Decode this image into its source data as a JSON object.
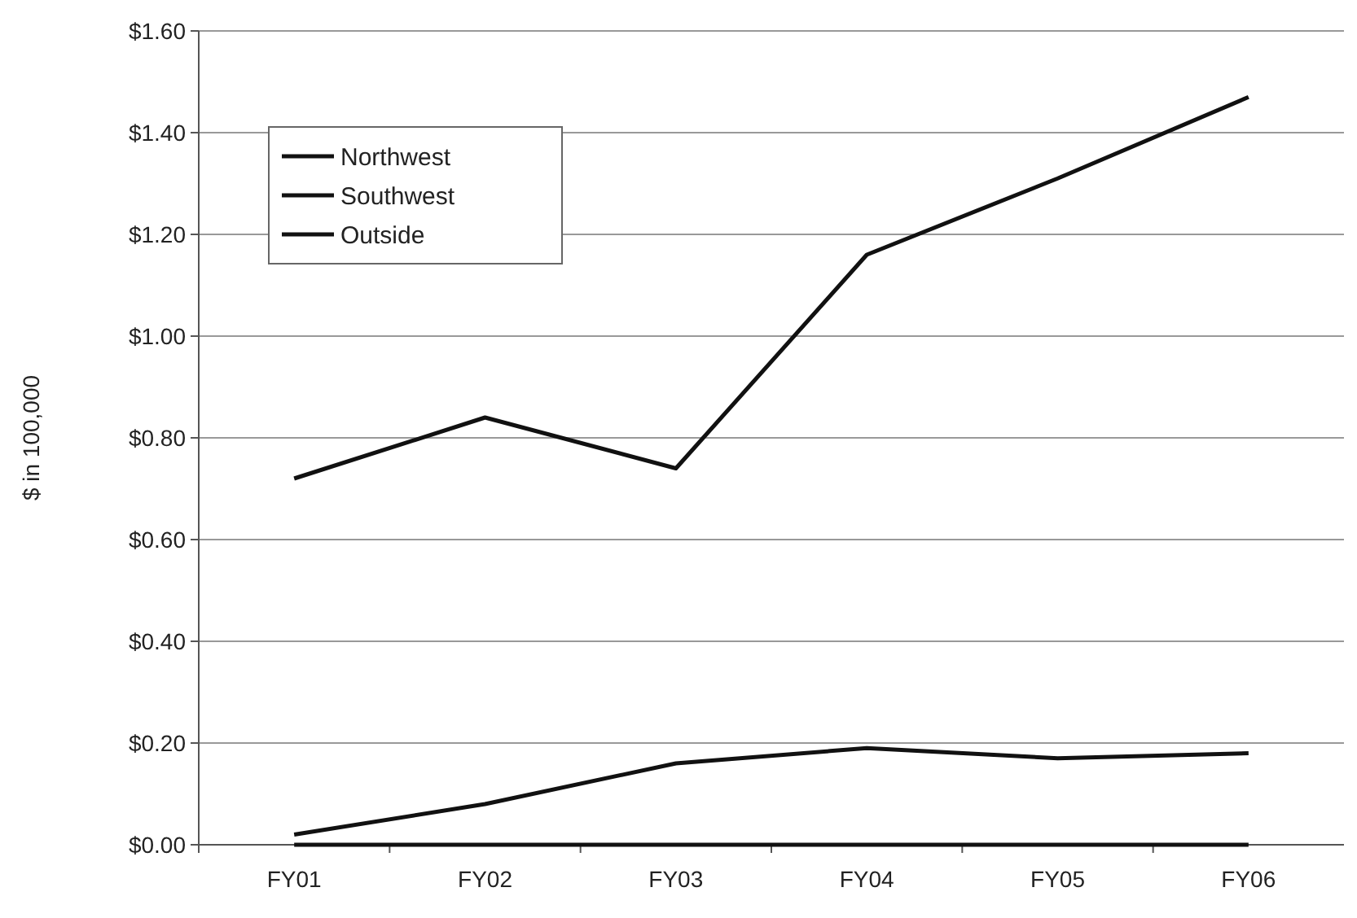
{
  "chart_data": {
    "type": "line",
    "ylabel": "$ in 100,000",
    "categories": [
      "FY01",
      "FY02",
      "FY03",
      "FY04",
      "FY05",
      "FY06"
    ],
    "series": [
      {
        "name": "Northwest",
        "color": "#111111",
        "values": [
          0.72,
          0.84,
          0.74,
          1.16,
          1.31,
          1.47
        ]
      },
      {
        "name": "Southwest",
        "color": "#111111",
        "values": [
          0.02,
          0.08,
          0.16,
          0.19,
          0.17,
          0.18
        ]
      },
      {
        "name": "Outside",
        "color": "#111111",
        "values": [
          0,
          0,
          0,
          0,
          0,
          0
        ]
      }
    ],
    "ylim": [
      0,
      1.6
    ],
    "yticks": [
      {
        "value": 0,
        "label": "$0.00"
      },
      {
        "value": 0.2,
        "label": "$0.20"
      },
      {
        "value": 0.4,
        "label": "$0.40"
      },
      {
        "value": 0.6,
        "label": "$0.60"
      },
      {
        "value": 0.8,
        "label": "$0.80"
      },
      {
        "value": 1,
        "label": "$1.00"
      },
      {
        "value": 1.2,
        "label": "$1.20"
      },
      {
        "value": 1.4,
        "label": "$1.40"
      },
      {
        "value": 1.6,
        "label": "$1.60"
      }
    ],
    "grid": "y",
    "legend": "top left",
    "marker": "none",
    "line_style": "solid"
  }
}
